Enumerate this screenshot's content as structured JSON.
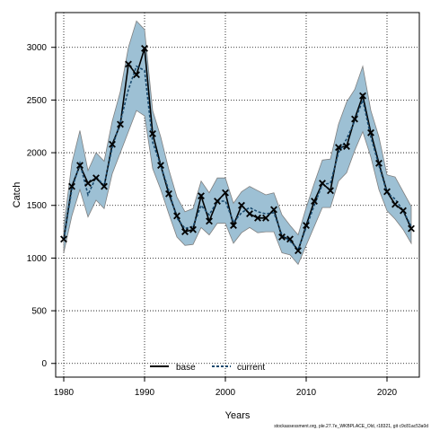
{
  "chart_data": {
    "type": "line",
    "xlabel": "Years",
    "ylabel": "Catch",
    "xlim": [
      1979,
      2024
    ],
    "ylim": [
      -130,
      3330
    ],
    "x_ticks": [
      1980,
      1990,
      2000,
      2010,
      2020
    ],
    "y_ticks": [
      0,
      500,
      1000,
      1500,
      2000,
      2500,
      3000
    ],
    "grid": true,
    "legend_placement": "bottom-center",
    "colors": {
      "band": "#9dc0d4",
      "band_edge": "#808080",
      "line": "#000000",
      "current": "#1a4a6e"
    },
    "x": [
      1980,
      1981,
      1982,
      1983,
      1984,
      1985,
      1986,
      1987,
      1988,
      1989,
      1990,
      1991,
      1992,
      1993,
      1994,
      1995,
      1996,
      1997,
      1998,
      1999,
      2000,
      2001,
      2002,
      2003,
      2004,
      2005,
      2006,
      2007,
      2008,
      2009,
      2010,
      2011,
      2012,
      2013,
      2014,
      2015,
      2016,
      2017,
      2018,
      2019,
      2020,
      2021,
      2022,
      2023
    ],
    "observed": [
      1180,
      1680,
      1880,
      1710,
      1760,
      1680,
      2080,
      2270,
      2840,
      2740,
      2990,
      2180,
      1880,
      1610,
      1400,
      1250,
      1270,
      1590,
      1350,
      1540,
      1620,
      1310,
      1500,
      1420,
      1380,
      1380,
      1460,
      1200,
      1180,
      1070,
      1310,
      1540,
      1710,
      1640,
      2050,
      2060,
      2320,
      2540,
      2190,
      1900,
      1630,
      1510,
      1450,
      1280
    ],
    "lower": [
      1050,
      1400,
      1650,
      1390,
      1550,
      1470,
      1800,
      2000,
      2200,
      2400,
      2350,
      1850,
      1650,
      1420,
      1200,
      1120,
      1130,
      1290,
      1220,
      1330,
      1330,
      1140,
      1240,
      1290,
      1240,
      1250,
      1250,
      1050,
      1030,
      940,
      1120,
      1300,
      1480,
      1480,
      1730,
      1810,
      2020,
      2200,
      1960,
      1650,
      1450,
      1370,
      1270,
      1140
    ],
    "upper": [
      1300,
      1900,
      2210,
      1830,
      2000,
      1920,
      2300,
      2580,
      3000,
      3250,
      3170,
      2400,
      2150,
      1840,
      1580,
      1440,
      1470,
      1730,
      1620,
      1760,
      1760,
      1520,
      1630,
      1680,
      1640,
      1600,
      1620,
      1410,
      1310,
      1220,
      1480,
      1710,
      1930,
      1940,
      2270,
      2480,
      2600,
      2820,
      2400,
      2150,
      1790,
      1770,
      1630,
      1490
    ],
    "series": [
      {
        "name": "base",
        "values": [
          1180,
          1680,
          1880,
          1710,
          1760,
          1680,
          2080,
          2270,
          2840,
          2740,
          2990,
          2180,
          1880,
          1610,
          1400,
          1250,
          1270,
          1590,
          1350,
          1540,
          1620,
          1310,
          1500,
          1420,
          1380,
          1380,
          1460,
          1200,
          1180,
          1070,
          1310,
          1540,
          1710,
          1640,
          2050,
          2060,
          2320,
          2540,
          2190,
          1900,
          1630,
          1510,
          1450,
          1280
        ]
      },
      {
        "name": "current",
        "values": [
          1180,
          1650,
          1900,
          1600,
          1770,
          1690,
          2050,
          2290,
          2600,
          2820,
          2780,
          2100,
          1880,
          1640,
          1380,
          1280,
          1300,
          1500,
          1410,
          1540,
          1540,
          1340,
          1430,
          1480,
          1440,
          1420,
          1430,
          1220,
          1160,
          1080,
          1290,
          1500,
          1700,
          1710,
          2000,
          2130,
          2300,
          2500,
          2150,
          1880,
          1620,
          1560,
          1450,
          1300
        ]
      }
    ]
  },
  "footer": "stockassessment.org, ple.27.7e_WKBPLACE_Old, r18321, git c9c81ac53a0d"
}
